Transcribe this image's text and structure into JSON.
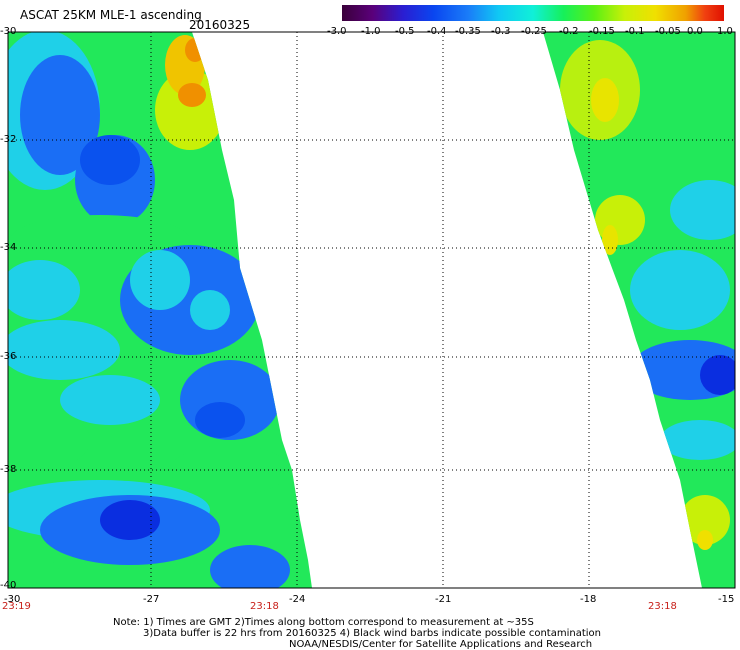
{
  "header": {
    "title": "ASCAT 25KM MLE-1 ascending",
    "date": "20160325"
  },
  "colorbar": {
    "labels": [
      "-3.0",
      "-1.0",
      "-0.5",
      "-0.4",
      "-0.35",
      "-0.3",
      "-0.25",
      "-0.2",
      "-0.15",
      "-0.1",
      "-0.05",
      "0.0",
      "1.0"
    ],
    "colors": [
      "#3a003a",
      "#5a007a",
      "#2a1ed2",
      "#0a46f0",
      "#1a7cf8",
      "#10c8f4",
      "#10f0d8",
      "#16f05a",
      "#5af014",
      "#c8f008",
      "#f0e000",
      "#f0a000",
      "#f04010",
      "#e01000"
    ]
  },
  "axes": {
    "y_labels": [
      "-30",
      "-32",
      "-34",
      "-36",
      "-38",
      "-40"
    ],
    "x_labels": [
      "-30",
      "-27",
      "-24",
      "-21",
      "-18",
      "-15"
    ],
    "time_labels": [
      "23:19",
      "23:18",
      "23:18"
    ]
  },
  "notes": {
    "line1": "Note: 1) Times are GMT 2)Times along bottom correspond to measurement at ~35S",
    "line2": "3)Data buffer is 22 hrs from 20160325 4) Black wind barbs indicate possible contamination",
    "line3": "NOAA/NESDIS/Center for Satellite Applications and Research"
  }
}
